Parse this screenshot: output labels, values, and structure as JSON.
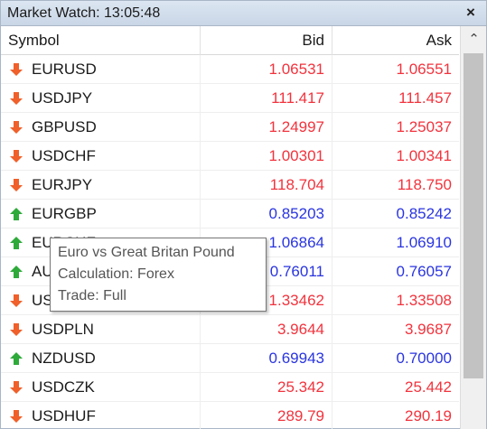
{
  "window": {
    "title": "Market Watch: 13:05:48",
    "close_glyph": "×"
  },
  "columns": {
    "symbol": "Symbol",
    "bid": "Bid",
    "ask": "Ask"
  },
  "colors": {
    "down": "#f2333d",
    "up": "#2a35e0",
    "down_arrow": "#f0602a",
    "up_arrow": "#2eaa3a"
  },
  "rows": [
    {
      "symbol": "EURUSD",
      "bid": "1.06531",
      "ask": "1.06551",
      "direction": "down"
    },
    {
      "symbol": "USDJPY",
      "bid": "111.417",
      "ask": "111.457",
      "direction": "down"
    },
    {
      "symbol": "GBPUSD",
      "bid": "1.24997",
      "ask": "1.25037",
      "direction": "down"
    },
    {
      "symbol": "USDCHF",
      "bid": "1.00301",
      "ask": "1.00341",
      "direction": "down"
    },
    {
      "symbol": "EURJPY",
      "bid": "118.704",
      "ask": "118.750",
      "direction": "down"
    },
    {
      "symbol": "EURGBP",
      "bid": "0.85203",
      "ask": "0.85242",
      "direction": "up"
    },
    {
      "symbol": "EURCHF",
      "bid": "1.06864",
      "ask": "1.06910",
      "direction": "up"
    },
    {
      "symbol": "AUDUSD",
      "bid": "0.76011",
      "ask": "0.76057",
      "direction": "up"
    },
    {
      "symbol": "USDCAD",
      "bid": "1.33462",
      "ask": "1.33508",
      "direction": "down"
    },
    {
      "symbol": "USDPLN",
      "bid": "3.9644",
      "ask": "3.9687",
      "direction": "down"
    },
    {
      "symbol": "NZDUSD",
      "bid": "0.69943",
      "ask": "0.70000",
      "direction": "up"
    },
    {
      "symbol": "USDCZK",
      "bid": "25.342",
      "ask": "25.442",
      "direction": "down"
    },
    {
      "symbol": "USDHUF",
      "bid": "289.79",
      "ask": "290.19",
      "direction": "down"
    }
  ],
  "tooltip": {
    "line1": "Euro vs Great Britan Pound",
    "line2": "Calculation: Forex",
    "line3": "Trade: Full"
  },
  "scrollbar": {
    "up_glyph": "⌃"
  }
}
